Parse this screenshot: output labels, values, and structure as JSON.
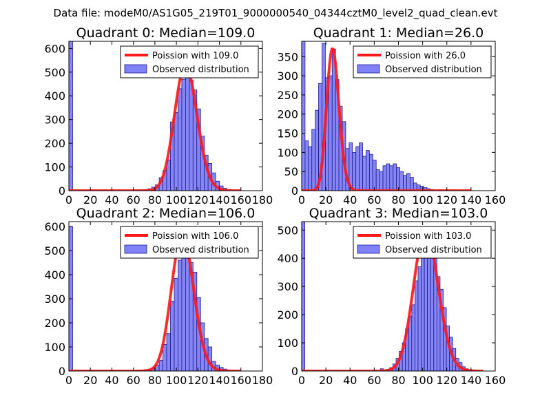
{
  "figure": {
    "suptitle": "Data file: modeM0/AS1G05_219T01_9000000540_04344cztM0_level2_quad_clean.evt"
  },
  "colors": {
    "bar_fill": "#8080f7",
    "bar_edge": "#1a1a8c",
    "fit_line": "#ff1a1a",
    "fit_overlap": "#f98a8a",
    "axes": "#000000"
  },
  "chart_data": [
    {
      "type": "bar",
      "title": "Quadrant 0: Median=109.0",
      "xlim": [
        0,
        180
      ],
      "ylim": [
        0,
        630
      ],
      "xticks": [
        0,
        20,
        40,
        60,
        80,
        100,
        120,
        140,
        160,
        180
      ],
      "yticks": [
        0,
        100,
        200,
        300,
        400,
        500,
        600
      ],
      "legend": {
        "location": "upper-right",
        "line_label": "Poission with 109.0",
        "bar_label": "Observed distribution"
      },
      "bin_width": 3.5,
      "bins": [
        {
          "x": 0,
          "count": 630
        },
        {
          "x": 63,
          "count": 3
        },
        {
          "x": 66.5,
          "count": 4
        },
        {
          "x": 70,
          "count": 5
        },
        {
          "x": 73.5,
          "count": 8
        },
        {
          "x": 77,
          "count": 15
        },
        {
          "x": 80.5,
          "count": 25
        },
        {
          "x": 84,
          "count": 55
        },
        {
          "x": 87.5,
          "count": 85
        },
        {
          "x": 91,
          "count": 130
        },
        {
          "x": 94.5,
          "count": 290
        },
        {
          "x": 98,
          "count": 330
        },
        {
          "x": 101.5,
          "count": 430
        },
        {
          "x": 105,
          "count": 470
        },
        {
          "x": 108.5,
          "count": 510
        },
        {
          "x": 112,
          "count": 465
        },
        {
          "x": 115.5,
          "count": 425
        },
        {
          "x": 119,
          "count": 345
        },
        {
          "x": 122.5,
          "count": 230
        },
        {
          "x": 126,
          "count": 150
        },
        {
          "x": 129.5,
          "count": 115
        },
        {
          "x": 133,
          "count": 75
        },
        {
          "x": 136.5,
          "count": 40
        },
        {
          "x": 140,
          "count": 20
        },
        {
          "x": 143.5,
          "count": 10
        },
        {
          "x": 147,
          "count": 5
        }
      ],
      "fit": {
        "label": "Poission with 109.0",
        "mean": 109.0,
        "peak": 530,
        "x_range": [
          0,
          160
        ]
      }
    },
    {
      "type": "bar",
      "title": "Quadrant 1: Median=26.0",
      "xlim": [
        0,
        160
      ],
      "ylim": [
        0,
        390
      ],
      "xticks": [
        0,
        20,
        40,
        60,
        80,
        100,
        120,
        140,
        160
      ],
      "yticks": [
        0,
        50,
        100,
        150,
        200,
        250,
        300,
        350
      ],
      "legend": {
        "location": "upper-right",
        "line_label": "Poission with 26.0",
        "bar_label": "Observed distribution"
      },
      "bin_width": 2.8,
      "bins": [
        {
          "x": 0,
          "count": 390
        },
        {
          "x": 2.8,
          "count": 130
        },
        {
          "x": 5.6,
          "count": 115
        },
        {
          "x": 8.4,
          "count": 160
        },
        {
          "x": 11.2,
          "count": 210
        },
        {
          "x": 14,
          "count": 280
        },
        {
          "x": 16.8,
          "count": 385
        },
        {
          "x": 19.6,
          "count": 295
        },
        {
          "x": 22.4,
          "count": 300
        },
        {
          "x": 25.2,
          "count": 370
        },
        {
          "x": 28,
          "count": 290
        },
        {
          "x": 30.8,
          "count": 220
        },
        {
          "x": 33.6,
          "count": 180
        },
        {
          "x": 36.4,
          "count": 110
        },
        {
          "x": 39.2,
          "count": 125
        },
        {
          "x": 42,
          "count": 100
        },
        {
          "x": 44.8,
          "count": 115
        },
        {
          "x": 47.6,
          "count": 125
        },
        {
          "x": 50.4,
          "count": 90
        },
        {
          "x": 53.2,
          "count": 105
        },
        {
          "x": 56,
          "count": 95
        },
        {
          "x": 58.8,
          "count": 80
        },
        {
          "x": 61.6,
          "count": 55
        },
        {
          "x": 64.4,
          "count": 50
        },
        {
          "x": 67.2,
          "count": 65
        },
        {
          "x": 70,
          "count": 70
        },
        {
          "x": 72.8,
          "count": 65
        },
        {
          "x": 75.6,
          "count": 70
        },
        {
          "x": 78.4,
          "count": 60
        },
        {
          "x": 81.2,
          "count": 50
        },
        {
          "x": 84,
          "count": 40
        },
        {
          "x": 86.8,
          "count": 45
        },
        {
          "x": 89.6,
          "count": 35
        },
        {
          "x": 92.4,
          "count": 20
        },
        {
          "x": 95.2,
          "count": 15
        },
        {
          "x": 98,
          "count": 12
        },
        {
          "x": 100.8,
          "count": 8
        },
        {
          "x": 103.6,
          "count": 5
        },
        {
          "x": 106.4,
          "count": 3
        }
      ],
      "fit": {
        "label": "Poission with 26.0",
        "mean": 26.0,
        "peak": 370,
        "x_range": [
          0,
          140
        ]
      }
    },
    {
      "type": "bar",
      "title": "Quadrant 2: Median=106.0",
      "xlim": [
        0,
        180
      ],
      "ylim": [
        0,
        620
      ],
      "xticks": [
        0,
        20,
        40,
        60,
        80,
        100,
        120,
        140,
        160,
        180
      ],
      "yticks": [
        0,
        100,
        200,
        300,
        400,
        500,
        600
      ],
      "legend": {
        "location": "upper-right",
        "line_label": "Poission with 106.0",
        "bar_label": "Observed distribution"
      },
      "bin_width": 3.5,
      "bins": [
        {
          "x": 0,
          "count": 600
        },
        {
          "x": 63,
          "count": 3
        },
        {
          "x": 66.5,
          "count": 4
        },
        {
          "x": 70,
          "count": 6
        },
        {
          "x": 73.5,
          "count": 8
        },
        {
          "x": 77,
          "count": 12
        },
        {
          "x": 80.5,
          "count": 25
        },
        {
          "x": 84,
          "count": 45
        },
        {
          "x": 87.5,
          "count": 110
        },
        {
          "x": 91,
          "count": 155
        },
        {
          "x": 94.5,
          "count": 290
        },
        {
          "x": 98,
          "count": 385
        },
        {
          "x": 101.5,
          "count": 460
        },
        {
          "x": 105,
          "count": 575
        },
        {
          "x": 108.5,
          "count": 490
        },
        {
          "x": 112,
          "count": 450
        },
        {
          "x": 115.5,
          "count": 410
        },
        {
          "x": 119,
          "count": 305
        },
        {
          "x": 122.5,
          "count": 200
        },
        {
          "x": 126,
          "count": 135
        },
        {
          "x": 129.5,
          "count": 100
        },
        {
          "x": 133,
          "count": 40
        },
        {
          "x": 136.5,
          "count": 25
        },
        {
          "x": 140,
          "count": 15
        },
        {
          "x": 143.5,
          "count": 8
        },
        {
          "x": 147,
          "count": 4
        }
      ],
      "fit": {
        "label": "Poission with 106.0",
        "mean": 106.0,
        "peak": 565,
        "x_range": [
          0,
          160
        ]
      }
    },
    {
      "type": "bar",
      "title": "Quadrant 3: Median=103.0",
      "xlim": [
        0,
        160
      ],
      "ylim": [
        0,
        530
      ],
      "xticks": [
        0,
        20,
        40,
        60,
        80,
        100,
        120,
        140,
        160
      ],
      "yticks": [
        0,
        100,
        200,
        300,
        400,
        500
      ],
      "legend": {
        "location": "upper-right",
        "line_label": "Poission with 103.0",
        "bar_label": "Observed distribution"
      },
      "bin_width": 2.6,
      "bins": [
        {
          "x": 0,
          "count": 530
        },
        {
          "x": 65,
          "count": 8
        },
        {
          "x": 67.6,
          "count": 3
        },
        {
          "x": 70.2,
          "count": 6
        },
        {
          "x": 72.8,
          "count": 12
        },
        {
          "x": 75.4,
          "count": 25
        },
        {
          "x": 78,
          "count": 45
        },
        {
          "x": 80.6,
          "count": 70
        },
        {
          "x": 83.2,
          "count": 100
        },
        {
          "x": 85.8,
          "count": 150
        },
        {
          "x": 88.4,
          "count": 195
        },
        {
          "x": 91,
          "count": 235
        },
        {
          "x": 93.6,
          "count": 320
        },
        {
          "x": 96.2,
          "count": 370
        },
        {
          "x": 98.8,
          "count": 420
        },
        {
          "x": 101.4,
          "count": 470
        },
        {
          "x": 104,
          "count": 505
        },
        {
          "x": 106.6,
          "count": 460
        },
        {
          "x": 109.2,
          "count": 400
        },
        {
          "x": 111.8,
          "count": 335
        },
        {
          "x": 114.4,
          "count": 290
        },
        {
          "x": 117,
          "count": 225
        },
        {
          "x": 119.6,
          "count": 160
        },
        {
          "x": 122.2,
          "count": 120
        },
        {
          "x": 124.8,
          "count": 80
        },
        {
          "x": 127.4,
          "count": 45
        },
        {
          "x": 130,
          "count": 30
        },
        {
          "x": 132.6,
          "count": 15
        },
        {
          "x": 135.2,
          "count": 8
        },
        {
          "x": 137.8,
          "count": 4
        }
      ],
      "fit": {
        "label": "Poission with 103.0",
        "mean": 103.0,
        "peak": 500,
        "x_range": [
          0,
          150
        ]
      }
    }
  ]
}
